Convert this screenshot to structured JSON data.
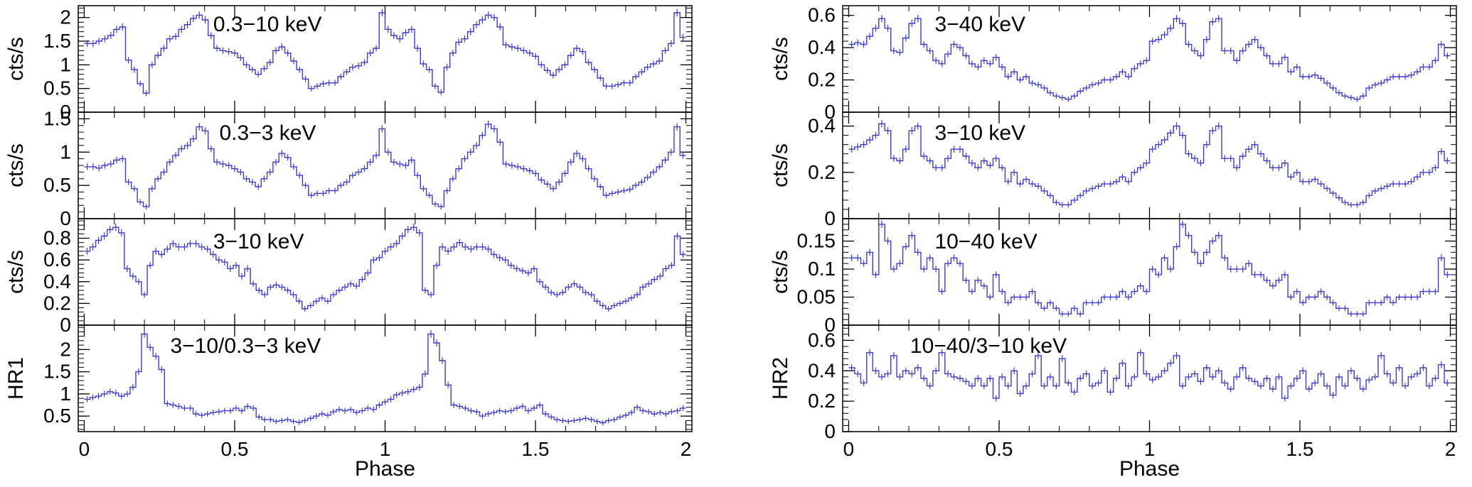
{
  "chart_data": [
    {
      "type": "line",
      "series_color": "#3b3bd6",
      "ylabel": "cts/s",
      "label": "0.3−10 keV",
      "ylim": [
        0,
        2.25
      ],
      "yticks": [
        "0",
        "0.5",
        "1",
        "1.5",
        "2"
      ],
      "xlim": [
        -0.02,
        2.02
      ],
      "xticks": [
        "0",
        "0.5",
        "1",
        "1.5",
        "2"
      ],
      "xlabel": "",
      "series": [
        {
          "values": [
            1.45,
            1.45,
            1.5,
            1.55,
            1.62,
            1.75,
            1.8,
            1.1,
            0.9,
            0.6,
            0.4,
            1.0,
            1.2,
            1.35,
            1.55,
            1.6,
            1.75,
            1.85,
            1.98,
            2.05,
            1.95,
            1.62,
            1.35,
            1.3,
            1.28,
            1.25,
            1.15,
            1.0,
            0.9,
            0.8,
            0.92,
            1.05,
            1.3,
            1.38,
            1.25,
            1.08,
            0.9,
            0.7,
            0.5,
            0.55,
            0.6,
            0.62,
            0.62,
            0.75,
            0.85,
            0.95,
            0.98,
            1.05,
            1.25,
            1.35,
            2.1,
            1.75,
            1.62,
            1.55,
            1.68,
            1.75,
            1.35,
            1.02,
            0.9,
            0.55,
            0.42,
            0.95,
            1.25,
            1.48,
            1.55,
            1.7,
            1.85,
            1.95,
            2.05,
            2.0,
            1.8,
            1.42,
            1.38,
            1.35,
            1.3,
            1.25,
            1.18,
            1.0,
            0.88,
            0.78,
            0.9,
            1.0,
            1.2,
            1.35,
            1.28,
            1.05,
            0.9,
            0.72,
            0.55,
            0.55,
            0.58,
            0.62,
            0.62,
            0.75,
            0.85,
            0.95,
            1.02,
            1.08,
            1.3,
            1.45,
            2.1,
            1.58
          ]
        }
      ]
    },
    {
      "type": "line",
      "series_color": "#3b3bd6",
      "ylabel": "cts/s",
      "label": "0.3−3 keV",
      "ylim": [
        0,
        1.6
      ],
      "yticks": [
        "0",
        "0.5",
        "1",
        "1.5"
      ],
      "xlim": [
        -0.02,
        2.02
      ],
      "xticks": [
        "0",
        "0.5",
        "1",
        "1.5",
        "2"
      ],
      "xlabel": "",
      "series": [
        {
          "values": [
            0.78,
            0.78,
            0.76,
            0.8,
            0.82,
            0.88,
            0.9,
            0.55,
            0.45,
            0.25,
            0.18,
            0.45,
            0.6,
            0.7,
            0.85,
            0.95,
            1.05,
            1.1,
            1.2,
            1.38,
            1.32,
            1.05,
            0.85,
            0.82,
            0.8,
            0.75,
            0.7,
            0.6,
            0.55,
            0.48,
            0.6,
            0.7,
            0.85,
            0.98,
            0.92,
            0.78,
            0.65,
            0.5,
            0.35,
            0.38,
            0.38,
            0.42,
            0.42,
            0.5,
            0.55,
            0.65,
            0.7,
            0.75,
            0.85,
            0.95,
            1.35,
            1.0,
            0.85,
            0.82,
            0.8,
            0.88,
            0.65,
            0.45,
            0.35,
            0.22,
            0.18,
            0.42,
            0.6,
            0.75,
            0.9,
            1.0,
            1.1,
            1.25,
            1.42,
            1.35,
            1.15,
            0.82,
            0.8,
            0.78,
            0.75,
            0.72,
            0.68,
            0.58,
            0.52,
            0.45,
            0.55,
            0.68,
            0.85,
            0.98,
            0.9,
            0.75,
            0.6,
            0.48,
            0.35,
            0.38,
            0.4,
            0.42,
            0.44,
            0.5,
            0.55,
            0.62,
            0.7,
            0.78,
            0.88,
            1.0,
            1.38,
            0.95
          ]
        }
      ]
    },
    {
      "type": "line",
      "series_color": "#3b3bd6",
      "ylabel": "cts/s",
      "label": "3−10 keV",
      "ylim": [
        0,
        0.98
      ],
      "yticks": [
        "0",
        "0.2",
        "0.4",
        "0.6",
        "0.8"
      ],
      "xlim": [
        -0.02,
        2.02
      ],
      "xticks": [
        "0",
        "0.5",
        "1",
        "1.5",
        "2"
      ],
      "xlabel": "",
      "series": [
        {
          "values": [
            0.68,
            0.72,
            0.78,
            0.82,
            0.88,
            0.9,
            0.85,
            0.52,
            0.45,
            0.4,
            0.28,
            0.55,
            0.68,
            0.65,
            0.7,
            0.75,
            0.72,
            0.72,
            0.75,
            0.75,
            0.72,
            0.7,
            0.65,
            0.6,
            0.58,
            0.52,
            0.55,
            0.45,
            0.52,
            0.38,
            0.32,
            0.28,
            0.35,
            0.37,
            0.35,
            0.32,
            0.28,
            0.22,
            0.15,
            0.18,
            0.22,
            0.25,
            0.22,
            0.28,
            0.32,
            0.35,
            0.38,
            0.36,
            0.42,
            0.48,
            0.6,
            0.62,
            0.68,
            0.72,
            0.75,
            0.82,
            0.88,
            0.9,
            0.85,
            0.32,
            0.28,
            0.55,
            0.72,
            0.68,
            0.72,
            0.76,
            0.72,
            0.7,
            0.72,
            0.72,
            0.7,
            0.65,
            0.62,
            0.6,
            0.55,
            0.52,
            0.5,
            0.48,
            0.52,
            0.4,
            0.35,
            0.3,
            0.28,
            0.3,
            0.35,
            0.38,
            0.35,
            0.3,
            0.28,
            0.22,
            0.18,
            0.15,
            0.18,
            0.2,
            0.22,
            0.25,
            0.28,
            0.35,
            0.38,
            0.42,
            0.45,
            0.52,
            0.55,
            0.82,
            0.65
          ]
        }
      ]
    },
    {
      "type": "line",
      "series_color": "#3b3bd6",
      "ylabel": "HR1",
      "label": "3−10/0.3−3 keV",
      "ylim": [
        0.15,
        2.55
      ],
      "yticks": [
        "0.5",
        "1",
        "1.5",
        "2"
      ],
      "xlim": [
        -0.02,
        2.02
      ],
      "xticks": [
        "0",
        "0.5",
        "1",
        "1.5",
        "2"
      ],
      "xlabel": "Phase",
      "series": [
        {
          "values": [
            0.88,
            0.92,
            0.95,
            1.0,
            1.05,
            1.02,
            0.95,
            1.0,
            1.15,
            1.5,
            2.35,
            2.05,
            1.85,
            1.55,
            0.78,
            0.75,
            0.72,
            0.68,
            0.68,
            0.55,
            0.52,
            0.55,
            0.58,
            0.6,
            0.62,
            0.62,
            0.68,
            0.62,
            0.72,
            0.68,
            0.48,
            0.42,
            0.42,
            0.38,
            0.4,
            0.42,
            0.38,
            0.36,
            0.4,
            0.45,
            0.5,
            0.55,
            0.52,
            0.6,
            0.65,
            0.62,
            0.65,
            0.58,
            0.62,
            0.68,
            0.65,
            0.75,
            0.82,
            0.88,
            0.98,
            1.02,
            1.05,
            1.1,
            1.15,
            1.45,
            2.35,
            2.15,
            1.75,
            1.2,
            0.75,
            0.72,
            0.68,
            0.62,
            0.6,
            0.5,
            0.55,
            0.58,
            0.62,
            0.6,
            0.62,
            0.68,
            0.72,
            0.62,
            0.68,
            0.75,
            0.55,
            0.48,
            0.42,
            0.4,
            0.38,
            0.4,
            0.42,
            0.45,
            0.42,
            0.38,
            0.35,
            0.4,
            0.42,
            0.48,
            0.52,
            0.58,
            0.7,
            0.62,
            0.6,
            0.55,
            0.58,
            0.55,
            0.6,
            0.62,
            0.68
          ]
        }
      ]
    },
    {
      "type": "line",
      "series_color": "#3b3bd6",
      "ylabel": "cts/s",
      "label": "3−40 keV",
      "ylim": [
        0,
        0.66
      ],
      "yticks": [
        "0",
        "0.2",
        "0.4",
        "0.6"
      ],
      "xlim": [
        -0.02,
        2.02
      ],
      "xticks": [
        "0",
        "0.5",
        "1",
        "1.5",
        "2"
      ],
      "xlabel": "",
      "series": [
        {
          "values": [
            0.42,
            0.43,
            0.42,
            0.47,
            0.52,
            0.58,
            0.52,
            0.38,
            0.37,
            0.46,
            0.55,
            0.58,
            0.42,
            0.38,
            0.32,
            0.3,
            0.36,
            0.42,
            0.4,
            0.35,
            0.3,
            0.28,
            0.32,
            0.3,
            0.34,
            0.28,
            0.22,
            0.25,
            0.2,
            0.22,
            0.18,
            0.17,
            0.15,
            0.12,
            0.1,
            0.09,
            0.08,
            0.1,
            0.13,
            0.15,
            0.17,
            0.18,
            0.2,
            0.2,
            0.22,
            0.25,
            0.22,
            0.27,
            0.3,
            0.32,
            0.44,
            0.45,
            0.48,
            0.52,
            0.58,
            0.55,
            0.42,
            0.38,
            0.35,
            0.45,
            0.56,
            0.58,
            0.38,
            0.38,
            0.32,
            0.38,
            0.42,
            0.45,
            0.4,
            0.35,
            0.3,
            0.3,
            0.34,
            0.25,
            0.28,
            0.22,
            0.22,
            0.23,
            0.21,
            0.18,
            0.15,
            0.12,
            0.1,
            0.09,
            0.08,
            0.1,
            0.15,
            0.17,
            0.18,
            0.2,
            0.22,
            0.22,
            0.22,
            0.23,
            0.25,
            0.28,
            0.28,
            0.32,
            0.42,
            0.35
          ]
        }
      ]
    },
    {
      "type": "line",
      "series_color": "#3b3bd6",
      "ylabel": "cts/s",
      "label": "3−10 keV",
      "ylim": [
        0,
        0.46
      ],
      "yticks": [
        "0",
        "0.2",
        "0.4"
      ],
      "xlim": [
        -0.02,
        2.02
      ],
      "xticks": [
        "0",
        "0.5",
        "1",
        "1.5",
        "2"
      ],
      "xlabel": "",
      "series": [
        {
          "values": [
            0.3,
            0.31,
            0.32,
            0.34,
            0.36,
            0.41,
            0.38,
            0.26,
            0.25,
            0.3,
            0.38,
            0.4,
            0.27,
            0.25,
            0.22,
            0.22,
            0.26,
            0.3,
            0.3,
            0.27,
            0.24,
            0.22,
            0.25,
            0.23,
            0.26,
            0.22,
            0.16,
            0.2,
            0.15,
            0.17,
            0.15,
            0.14,
            0.12,
            0.1,
            0.07,
            0.06,
            0.06,
            0.08,
            0.1,
            0.12,
            0.13,
            0.14,
            0.15,
            0.15,
            0.16,
            0.18,
            0.16,
            0.2,
            0.22,
            0.24,
            0.3,
            0.32,
            0.34,
            0.37,
            0.4,
            0.36,
            0.28,
            0.26,
            0.24,
            0.32,
            0.38,
            0.4,
            0.26,
            0.26,
            0.22,
            0.27,
            0.3,
            0.32,
            0.28,
            0.25,
            0.22,
            0.22,
            0.24,
            0.18,
            0.2,
            0.16,
            0.16,
            0.17,
            0.15,
            0.13,
            0.11,
            0.09,
            0.07,
            0.06,
            0.06,
            0.07,
            0.1,
            0.12,
            0.13,
            0.14,
            0.15,
            0.15,
            0.15,
            0.16,
            0.18,
            0.2,
            0.2,
            0.22,
            0.29,
            0.25
          ]
        }
      ]
    },
    {
      "type": "line",
      "series_color": "#3b3bd6",
      "ylabel": "cts/s",
      "label": "10−40 keV",
      "ylim": [
        0,
        0.19
      ],
      "yticks": [
        "0",
        "0.05",
        "0.1",
        "0.15"
      ],
      "xlim": [
        -0.02,
        2.02
      ],
      "xticks": [
        "0",
        "0.5",
        "1",
        "1.5",
        "2"
      ],
      "xlabel": "",
      "series": [
        {
          "values": [
            0.12,
            0.12,
            0.11,
            0.13,
            0.09,
            0.18,
            0.15,
            0.1,
            0.11,
            0.14,
            0.16,
            0.13,
            0.1,
            0.12,
            0.1,
            0.06,
            0.11,
            0.12,
            0.11,
            0.08,
            0.06,
            0.08,
            0.07,
            0.05,
            0.09,
            0.06,
            0.04,
            0.05,
            0.05,
            0.05,
            0.06,
            0.04,
            0.03,
            0.04,
            0.03,
            0.02,
            0.02,
            0.03,
            0.02,
            0.04,
            0.04,
            0.04,
            0.05,
            0.05,
            0.05,
            0.06,
            0.05,
            0.06,
            0.07,
            0.06,
            0.1,
            0.09,
            0.12,
            0.1,
            0.14,
            0.18,
            0.16,
            0.13,
            0.11,
            0.13,
            0.15,
            0.16,
            0.12,
            0.1,
            0.1,
            0.1,
            0.11,
            0.09,
            0.09,
            0.08,
            0.07,
            0.08,
            0.09,
            0.05,
            0.06,
            0.04,
            0.05,
            0.05,
            0.06,
            0.05,
            0.04,
            0.03,
            0.03,
            0.02,
            0.02,
            0.02,
            0.04,
            0.04,
            0.04,
            0.05,
            0.04,
            0.05,
            0.05,
            0.05,
            0.05,
            0.06,
            0.06,
            0.06,
            0.12,
            0.09
          ]
        }
      ]
    },
    {
      "type": "line",
      "series_color": "#3b3bd6",
      "ylabel": "HR2",
      "label": "10−40/3−10 keV",
      "ylim": [
        0,
        0.7
      ],
      "yticks": [
        "0",
        "0.2",
        "0.4",
        "0.6"
      ],
      "xlim": [
        -0.02,
        2.02
      ],
      "xticks": [
        "0",
        "0.5",
        "1",
        "1.5",
        "2"
      ],
      "xlabel": "Phase",
      "series": [
        {
          "values": [
            0.42,
            0.38,
            0.32,
            0.52,
            0.4,
            0.36,
            0.38,
            0.5,
            0.36,
            0.4,
            0.38,
            0.42,
            0.35,
            0.3,
            0.4,
            0.52,
            0.38,
            0.36,
            0.35,
            0.33,
            0.3,
            0.35,
            0.3,
            0.35,
            0.22,
            0.36,
            0.3,
            0.4,
            0.25,
            0.3,
            0.38,
            0.5,
            0.3,
            0.36,
            0.3,
            0.48,
            0.32,
            0.26,
            0.35,
            0.38,
            0.3,
            0.32,
            0.4,
            0.26,
            0.35,
            0.45,
            0.3,
            0.36,
            0.52,
            0.38,
            0.34,
            0.36,
            0.4,
            0.45,
            0.5,
            0.3,
            0.36,
            0.38,
            0.33,
            0.42,
            0.36,
            0.4,
            0.32,
            0.28,
            0.36,
            0.42,
            0.35,
            0.33,
            0.3,
            0.35,
            0.28,
            0.36,
            0.22,
            0.3,
            0.35,
            0.4,
            0.28,
            0.32,
            0.38,
            0.3,
            0.24,
            0.36,
            0.3,
            0.4,
            0.35,
            0.28,
            0.34,
            0.36,
            0.5,
            0.38,
            0.32,
            0.42,
            0.3,
            0.36,
            0.38,
            0.42,
            0.3,
            0.35,
            0.44,
            0.32
          ]
        }
      ]
    }
  ]
}
